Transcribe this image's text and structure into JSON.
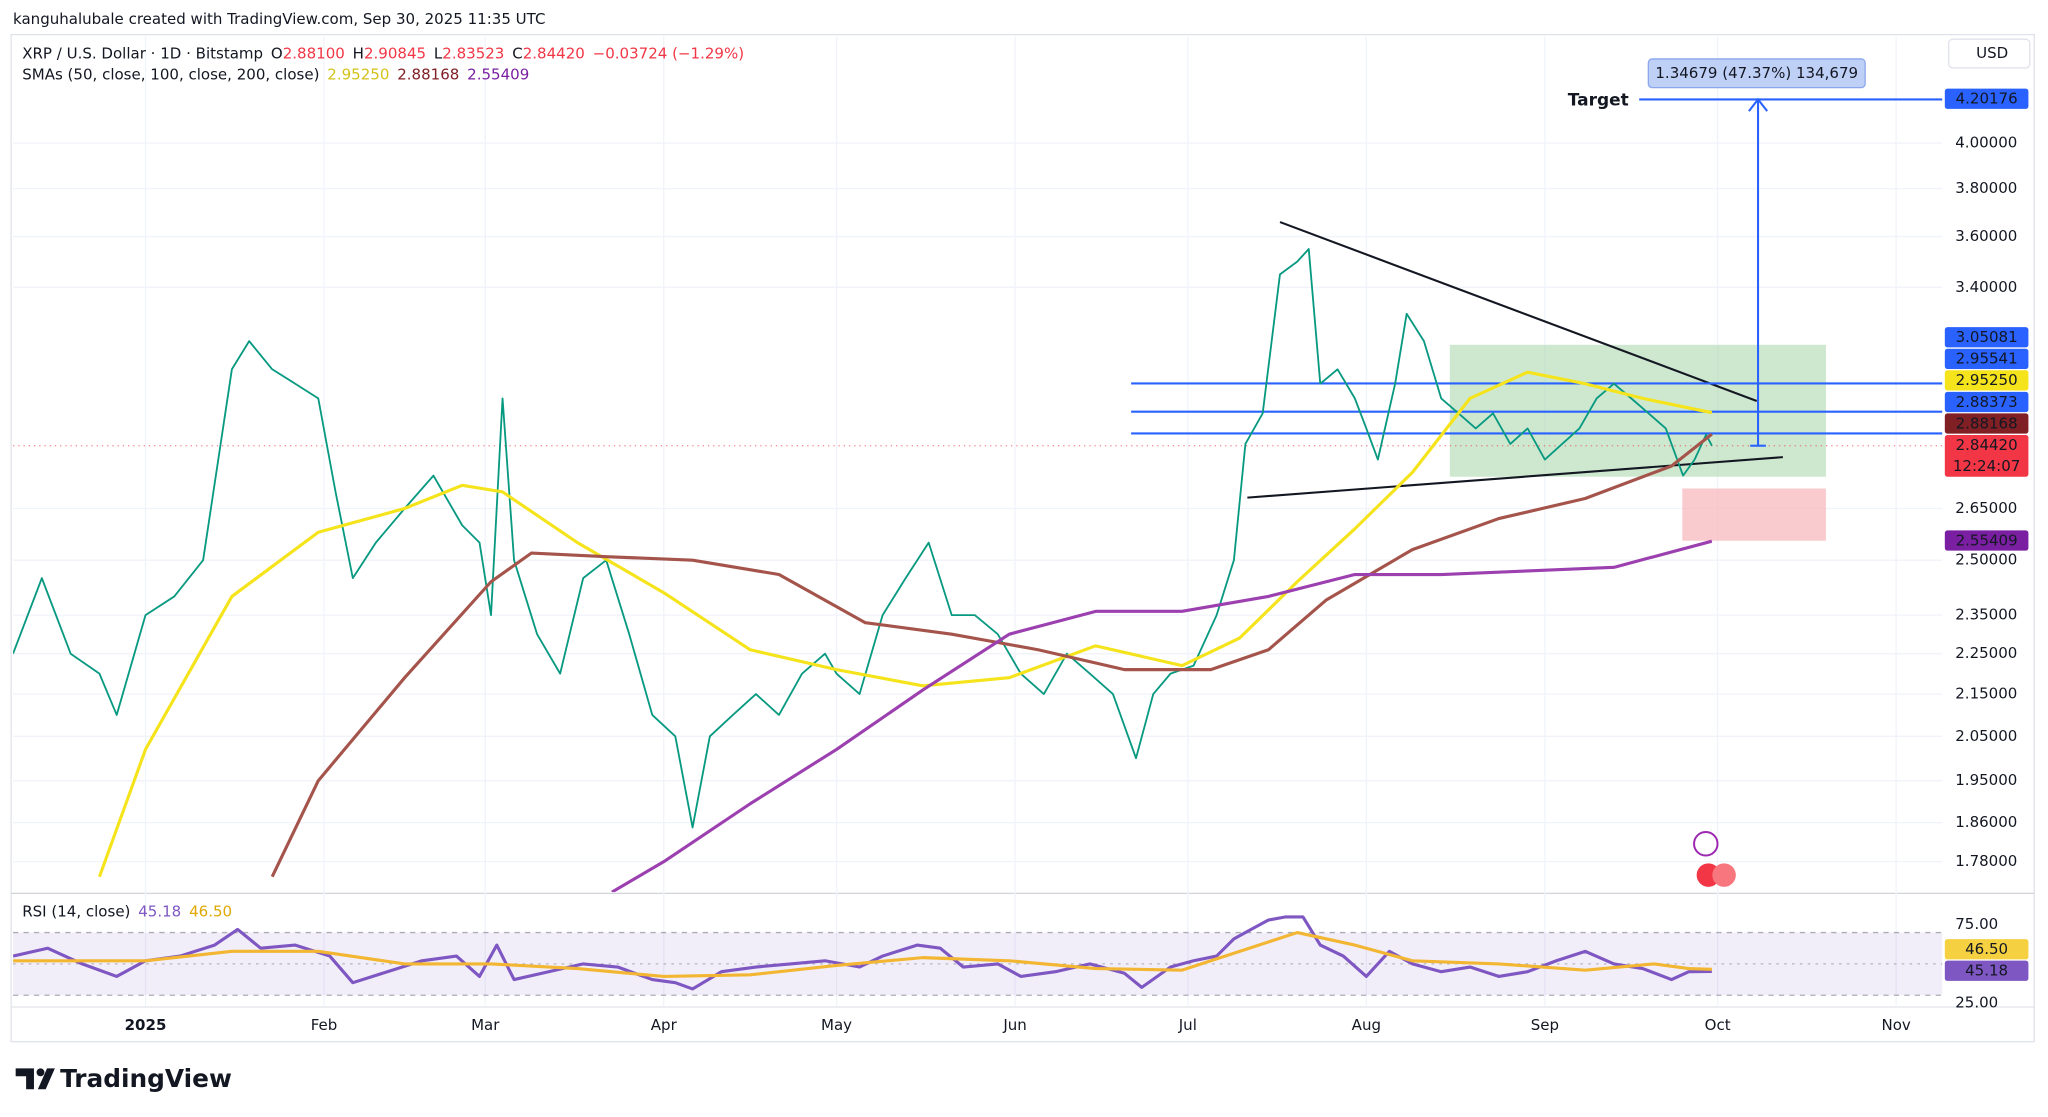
{
  "header": {
    "attribution": "kanguhalubale created with TradingView.com, Sep 30, 2025 11:35 UTC",
    "symbol": "XRP / U.S. Dollar · 1D · Bitstamp",
    "keys": [
      "O",
      "H",
      "L",
      "C"
    ],
    "open": "2.88100",
    "high": "2.90845",
    "low": "2.83523",
    "change": "−0.03724 (−1.29%)",
    "sma_title": "SMAs (50, close, 100, close, 200, close)",
    "currency": "USD"
  },
  "chart_data": [
    {
      "type": "line",
      "log_scale": true,
      "grid": true,
      "xlim": [
        -23,
        312
      ],
      "ylim": [
        1.72,
        4.51
      ],
      "xticks": [
        {
          "value": 0,
          "label": "2025"
        },
        {
          "value": 31,
          "label": "Feb"
        },
        {
          "value": 59,
          "label": "Mar"
        },
        {
          "value": 90,
          "label": "Apr"
        },
        {
          "value": 120,
          "label": "May"
        },
        {
          "value": 151,
          "label": "Jun"
        },
        {
          "value": 181,
          "label": "Jul"
        },
        {
          "value": 212,
          "label": "Aug"
        },
        {
          "value": 243,
          "label": "Sep"
        },
        {
          "value": 273,
          "label": "Oct"
        },
        {
          "value": 304,
          "label": "Nov"
        }
      ],
      "yticks": [
        {
          "value": 4,
          "label": "4.00000"
        },
        {
          "value": 3.8,
          "label": "3.80000"
        },
        {
          "value": 3.6,
          "label": "3.60000"
        },
        {
          "value": 3.4,
          "label": "3.40000"
        },
        {
          "value": 2.65,
          "label": "2.65000"
        },
        {
          "value": 2.5,
          "label": "2.50000"
        },
        {
          "value": 2.35,
          "label": "2.35000"
        },
        {
          "value": 2.25,
          "label": "2.25000"
        },
        {
          "value": 2.15,
          "label": "2.15000"
        },
        {
          "value": 2.05,
          "label": "2.05000"
        },
        {
          "value": 1.95,
          "label": "1.95000"
        },
        {
          "value": 1.86,
          "label": "1.86000"
        },
        {
          "value": 1.78,
          "label": "1.78000"
        }
      ],
      "series": [
        {
          "color": "#089981",
          "x": [
            -23,
            -18,
            -13,
            -8,
            -5,
            0,
            5,
            10,
            15,
            18,
            22,
            26,
            30,
            33,
            36,
            40,
            45,
            50,
            55,
            58,
            60,
            62,
            64,
            68,
            72,
            76,
            80,
            84,
            88,
            92,
            95,
            98,
            102,
            106,
            110,
            114,
            118,
            120,
            124,
            128,
            132,
            136,
            140,
            144,
            148,
            152,
            156,
            160,
            164,
            168,
            172,
            175,
            178,
            182,
            186,
            189,
            191,
            194,
            197,
            200,
            202,
            204,
            207,
            210,
            212,
            214,
            217,
            219,
            222,
            225,
            228,
            231,
            234,
            237,
            240,
            243,
            246,
            249,
            252,
            255,
            258,
            261,
            264,
            267,
            269,
            271,
            272
          ],
          "values": [
            2.25,
            2.45,
            2.25,
            2.2,
            2.1,
            2.35,
            2.4,
            2.5,
            3.1,
            3.2,
            3.1,
            3.05,
            3.0,
            2.7,
            2.45,
            2.55,
            2.65,
            2.75,
            2.6,
            2.55,
            2.35,
            3.0,
            2.5,
            2.3,
            2.2,
            2.45,
            2.5,
            2.3,
            2.1,
            2.05,
            1.85,
            2.05,
            2.1,
            2.15,
            2.1,
            2.2,
            2.25,
            2.2,
            2.15,
            2.35,
            2.45,
            2.55,
            2.35,
            2.35,
            2.3,
            2.2,
            2.15,
            2.25,
            2.2,
            2.15,
            2.0,
            2.15,
            2.2,
            2.22,
            2.35,
            2.5,
            2.85,
            2.95,
            3.45,
            3.5,
            3.55,
            3.05,
            3.1,
            3.0,
            2.9,
            2.8,
            3.05,
            3.3,
            3.2,
            3.0,
            2.95,
            2.9,
            2.95,
            2.85,
            2.9,
            2.8,
            2.85,
            2.9,
            3.0,
            3.05,
            3.0,
            2.95,
            2.9,
            2.75,
            2.8,
            2.88,
            2.8442
          ]
        },
        {
          "color": "#f5e31b",
          "x": [
            -8,
            0,
            15,
            30,
            45,
            55,
            62,
            75,
            90,
            105,
            120,
            135,
            150,
            165,
            180,
            190,
            200,
            210,
            220,
            230,
            240,
            250,
            260,
            270,
            272
          ],
          "values": [
            1.75,
            2.02,
            2.4,
            2.58,
            2.65,
            2.72,
            2.7,
            2.55,
            2.41,
            2.26,
            2.21,
            2.17,
            2.19,
            2.27,
            2.22,
            2.29,
            2.44,
            2.59,
            2.76,
            3.0,
            3.09,
            3.05,
            3.0,
            2.96,
            2.9525
          ]
        },
        {
          "color": "#a5544b",
          "x": [
            22,
            30,
            45,
            60,
            67,
            80,
            95,
            110,
            125,
            140,
            155,
            170,
            185,
            195,
            205,
            220,
            235,
            250,
            265,
            272
          ],
          "values": [
            1.75,
            1.95,
            2.19,
            2.44,
            2.52,
            2.51,
            2.5,
            2.46,
            2.33,
            2.3,
            2.26,
            2.21,
            2.21,
            2.26,
            2.39,
            2.53,
            2.62,
            2.68,
            2.78,
            2.88168
          ]
        },
        {
          "color": "#9c40b0",
          "x": [
            81,
            90,
            105,
            120,
            135,
            150,
            165,
            180,
            195,
            210,
            225,
            240,
            255,
            272
          ],
          "values": [
            1.72,
            1.78,
            1.9,
            2.02,
            2.16,
            2.3,
            2.36,
            2.36,
            2.4,
            2.46,
            2.46,
            2.47,
            2.48,
            2.55409
          ]
        }
      ],
      "tags": [
        {
          "value": 4.20176,
          "label": "4.20176",
          "color": "#2962ff",
          "target": "Target"
        },
        {
          "value": 3.05081,
          "label": "3.05081",
          "color": "#2962ff",
          "level": true
        },
        {
          "value": 2.95541,
          "label": "2.95541",
          "color": "#2962ff",
          "level": true
        },
        {
          "value": 2.9525,
          "label": "2.95250",
          "color": "#f5e31b"
        },
        {
          "value": 2.88373,
          "label": "2.88373",
          "color": "#2962ff",
          "level": true
        },
        {
          "value": 2.88168,
          "label": "2.88168",
          "color": "#801f24"
        },
        {
          "value": 2.8442,
          "label": "2.84420",
          "color": "#f23645",
          "countdown": "12:24:07"
        },
        {
          "value": 2.55409,
          "label": "2.55409",
          "color": "#7b1fa2"
        }
      ],
      "measure": "1.34679 (47.37%) 134,679"
    },
    {
      "type": "line",
      "title": "RSI (14, close)",
      "xlim": [
        -23,
        312
      ],
      "ylim": [
        23.3,
        90
      ],
      "yticks": [
        {
          "value": 75,
          "label": "75.00"
        },
        {
          "value": 25,
          "label": "25.00"
        }
      ],
      "band": [
        30,
        70
      ],
      "midline": 50,
      "series": [
        {
          "color": "#7e57c2",
          "x": [
            -23,
            -17,
            -11,
            -5,
            0,
            6,
            12,
            16,
            20,
            26,
            32,
            36,
            42,
            48,
            54,
            58,
            61,
            64,
            70,
            76,
            82,
            88,
            92,
            95,
            100,
            106,
            112,
            118,
            124,
            128,
            134,
            138,
            142,
            148,
            152,
            158,
            164,
            170,
            173,
            178,
            182,
            186,
            189,
            192,
            195,
            198,
            201,
            204,
            208,
            212,
            216,
            220,
            225,
            230,
            235,
            240,
            245,
            250,
            255,
            260,
            265,
            268,
            272
          ],
          "values": [
            55,
            60,
            50,
            42,
            52,
            55,
            62,
            72,
            60,
            62,
            55,
            38,
            45,
            52,
            55,
            42,
            62,
            40,
            45,
            50,
            48,
            40,
            38,
            34,
            45,
            48,
            50,
            52,
            48,
            55,
            62,
            60,
            48,
            50,
            42,
            45,
            50,
            44,
            35,
            48,
            52,
            55,
            66,
            72,
            78,
            80,
            80,
            62,
            55,
            42,
            58,
            50,
            45,
            48,
            42,
            45,
            52,
            58,
            50,
            47,
            40,
            45,
            45.18
          ]
        },
        {
          "color": "#f2b632",
          "x": [
            -23,
            0,
            15,
            30,
            45,
            60,
            75,
            90,
            105,
            120,
            135,
            150,
            165,
            180,
            190,
            200,
            210,
            220,
            235,
            250,
            262,
            268,
            272
          ],
          "values": [
            52,
            52,
            58,
            58,
            50,
            50,
            47,
            42,
            43,
            49,
            54,
            52,
            47,
            46,
            58,
            70,
            62,
            52,
            50,
            46,
            50,
            47,
            46.5
          ]
        }
      ],
      "tags": [
        {
          "value": 46.5,
          "label": "46.50",
          "color": "#f5d142"
        },
        {
          "value": 45.18,
          "label": "45.18",
          "color": "#7e57c2"
        }
      ]
    }
  ],
  "footer": {
    "brand": "TradingView"
  }
}
